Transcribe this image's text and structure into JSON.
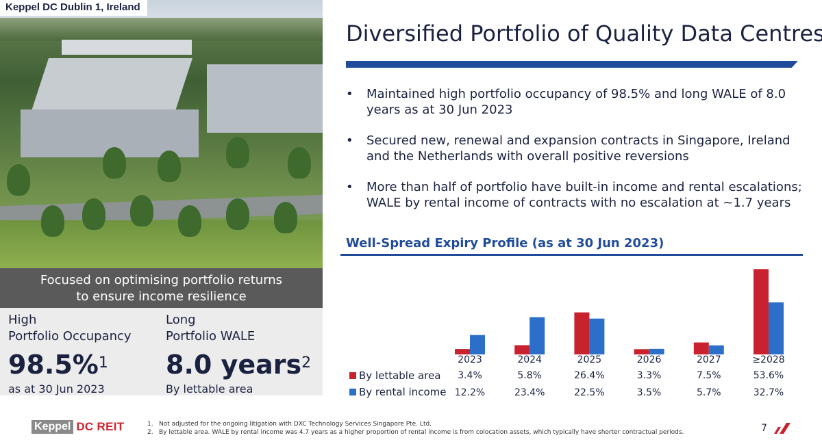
{
  "photo": {
    "label": "Keppel DC Dublin 1, Ireland"
  },
  "focus": {
    "line1": "Focused on optimising portfolio returns",
    "line2": "to ensure income resilience"
  },
  "stats": [
    {
      "label1": "High",
      "label2": "Portfolio Occupancy",
      "value": "98.5%",
      "sup": "1",
      "sub": "as at 30 Jun 2023"
    },
    {
      "label1": "Long",
      "label2": "Portfolio WALE",
      "value": "8.0 years",
      "sup": "2",
      "sub": "By lettable area"
    }
  ],
  "title": "Diversified Portfolio of Quality Data Centres",
  "bullets": [
    {
      "mark": "•",
      "text": "Maintained high portfolio occupancy of 98.5% and long WALE of 8.0 years as at 30 Jun 2023"
    },
    {
      "mark": "•",
      "text": "Secured new, renewal and expansion contracts in Singapore, Ireland and the Netherlands with overall positive reversions"
    },
    {
      "mark": "•",
      "text": "More than half of portfolio have built-in income and rental escalations; WALE by rental income of contracts with no escalation at ~1.7 years"
    }
  ],
  "chart_data": {
    "type": "bar",
    "title": "Well-Spread Expiry Profile (as at 30 Jun 2023)",
    "categories": [
      "2023",
      "2024",
      "2025",
      "2026",
      "2027",
      "≥2028"
    ],
    "series": [
      {
        "name": "By lettable area",
        "color": "#c8222f",
        "values": [
          3.4,
          5.8,
          26.4,
          3.3,
          7.5,
          53.6
        ],
        "labels": [
          "3.4%",
          "5.8%",
          "26.4%",
          "3.3%",
          "7.5%",
          "53.6%"
        ]
      },
      {
        "name": "By rental income",
        "color": "#2b6fc9",
        "values": [
          12.2,
          23.4,
          22.5,
          3.5,
          5.7,
          32.7
        ],
        "labels": [
          "12.2%",
          "23.4%",
          "22.5%",
          "3.5%",
          "5.7%",
          "32.7%"
        ]
      }
    ],
    "ylim": [
      0,
      55
    ],
    "grid": false,
    "legend": "left, as table rows"
  },
  "footer": {
    "logo_keppel": "Keppel",
    "logo_dc": "DC REIT",
    "notes": [
      {
        "num": "1.",
        "text": "Not adjusted for the ongoing litigation with DXC Technology Services Singapore Pte. Ltd."
      },
      {
        "num": "2.",
        "text": "By lettable area. WALE by rental income was 4.7 years as a higher proportion of rental income is from colocation assets, which typically have shorter contractual periods."
      }
    ],
    "page": "7"
  },
  "colors": {
    "navy": "#1b2240",
    "blue": "#1f4b9a",
    "red": "#c8222f",
    "grey_box": "#5a5a5a",
    "stat_bg": "#ececec"
  }
}
